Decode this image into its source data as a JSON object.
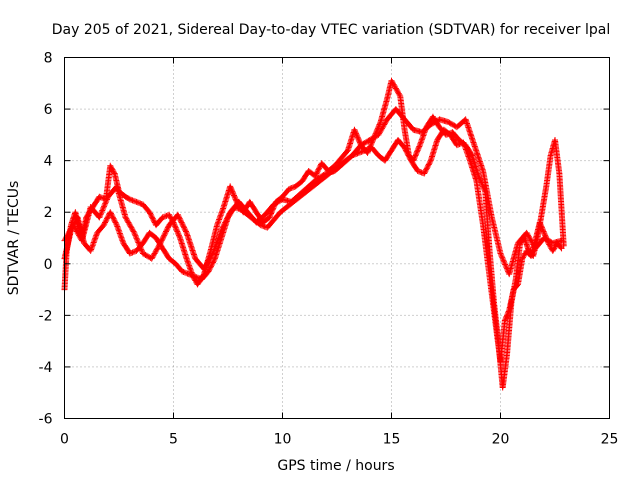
{
  "chart_data": {
    "type": "scatter",
    "title": "Day 205 of 2021, Sidereal Day-to-day VTEC variation (SDTVAR) for receiver lpal",
    "xlabel": "GPS time / hours",
    "ylabel": "SDTVAR / TECUs",
    "xlim": [
      0,
      25
    ],
    "ylim": [
      -6,
      8
    ],
    "xticks": [
      "0",
      "5",
      "10",
      "15",
      "20",
      "25"
    ],
    "yticks": [
      "-6",
      "-4",
      "-2",
      "0",
      "2",
      "4",
      "6",
      "8"
    ],
    "grid": true,
    "marker": "plus",
    "color": "#ff0000",
    "series": [
      {
        "x": [
          0.0,
          0.1,
          0.3,
          0.5,
          0.8,
          1.0,
          1.3,
          1.6,
          1.9,
          2.1,
          2.3,
          2.5,
          2.8,
          3.0,
          3.3,
          3.6,
          3.9,
          4.2,
          4.5,
          4.8,
          5.0,
          5.3,
          5.6,
          5.9,
          6.1,
          6.4,
          6.7,
          7.0,
          7.3,
          7.6,
          7.9,
          8.2,
          8.5,
          8.8,
          9.1,
          9.4,
          9.7,
          10.0,
          10.3,
          10.6,
          10.9,
          11.2,
          11.5,
          11.8,
          12.1,
          12.4,
          12.7,
          13.0,
          13.3,
          13.6,
          13.9,
          14.2,
          14.5,
          14.8,
          15.0,
          15.2,
          15.4,
          15.6,
          15.8,
          16.0,
          16.3,
          16.6,
          16.9,
          17.2,
          17.5,
          17.8,
          18.1,
          18.4,
          18.7,
          19.0,
          19.3,
          19.5,
          19.7,
          19.9,
          20.1,
          20.3,
          20.5,
          20.7,
          20.9,
          21.1,
          21.3,
          21.5,
          21.7,
          21.9,
          22.1,
          22.3,
          22.5,
          22.7,
          22.9
        ],
        "y": [
          -1.0,
          0.5,
          1.5,
          2.0,
          1.0,
          1.8,
          2.2,
          2.6,
          2.5,
          3.8,
          3.5,
          2.8,
          2.6,
          2.5,
          2.4,
          2.3,
          2.0,
          1.5,
          1.8,
          1.9,
          1.6,
          1.0,
          0.2,
          -0.5,
          -0.8,
          -0.4,
          0.5,
          1.5,
          2.2,
          3.0,
          2.4,
          2.0,
          2.4,
          2.0,
          1.6,
          1.8,
          2.4,
          2.6,
          2.9,
          3.0,
          3.2,
          3.6,
          3.4,
          3.9,
          3.6,
          3.8,
          4.1,
          4.4,
          5.2,
          4.6,
          4.3,
          4.9,
          5.5,
          6.4,
          7.1,
          6.8,
          6.5,
          5.2,
          4.2,
          4.0,
          4.6,
          5.3,
          5.7,
          5.3,
          5.0,
          5.1,
          4.8,
          4.6,
          4.2,
          3.4,
          2.8,
          0.5,
          -1.5,
          -3.0,
          -4.8,
          -3.5,
          -1.5,
          -0.6,
          0.8,
          1.0,
          0.5,
          0.3,
          1.0,
          2.0,
          3.0,
          4.2,
          4.8,
          3.5,
          0.7
        ]
      },
      {
        "x": [
          0.0,
          0.3,
          0.6,
          0.9,
          1.2,
          1.5,
          1.8,
          2.1,
          2.4,
          2.7,
          3.0,
          3.3,
          3.6,
          3.9,
          4.2,
          4.5,
          4.8,
          5.1,
          5.4,
          5.7,
          6.0,
          6.3,
          6.6,
          6.9,
          7.2,
          7.5,
          7.8,
          8.1,
          8.4,
          8.7,
          9.0,
          9.3,
          9.6,
          9.9,
          10.2,
          10.5,
          10.8,
          11.1,
          11.4,
          11.7,
          12.0,
          12.3,
          12.6,
          12.9,
          13.2,
          13.5,
          13.8,
          14.1,
          14.4,
          14.7,
          15.0,
          15.3,
          15.6,
          15.9,
          16.2,
          16.5,
          16.8,
          17.1,
          17.4,
          17.7,
          18.0,
          18.3,
          18.6,
          18.9,
          19.2,
          19.5,
          19.8,
          20.0,
          20.2,
          20.4,
          20.6,
          20.8,
          21.0,
          21.2,
          21.4,
          21.6,
          21.8,
          22.0,
          22.2,
          22.4,
          22.6,
          22.8
        ],
        "y": [
          0.2,
          1.3,
          1.8,
          0.8,
          0.5,
          1.2,
          1.5,
          2.0,
          1.5,
          0.8,
          0.4,
          0.5,
          0.8,
          1.2,
          1.0,
          0.6,
          0.2,
          0.0,
          -0.3,
          -0.4,
          -0.5,
          -0.6,
          -0.3,
          0.2,
          1.0,
          1.8,
          2.2,
          2.1,
          1.9,
          1.7,
          1.5,
          1.4,
          1.7,
          2.0,
          2.2,
          2.4,
          2.6,
          2.8,
          3.0,
          3.2,
          3.4,
          3.6,
          3.8,
          4.0,
          4.2,
          4.3,
          4.4,
          4.5,
          4.2,
          4.0,
          4.4,
          4.8,
          4.5,
          4.0,
          3.6,
          3.5,
          4.0,
          4.8,
          5.2,
          5.0,
          4.6,
          4.7,
          4.0,
          3.2,
          1.5,
          -0.5,
          -2.5,
          -3.8,
          -2.2,
          -1.8,
          -1.0,
          -0.8,
          0.2,
          0.5,
          0.3,
          0.9,
          1.6,
          1.2,
          0.8,
          0.5,
          0.8,
          0.6
        ]
      },
      {
        "x": [
          0.0,
          0.4,
          0.8,
          1.2,
          1.6,
          2.0,
          2.4,
          2.8,
          3.2,
          3.6,
          4.0,
          4.4,
          4.8,
          5.2,
          5.6,
          6.0,
          6.4,
          6.8,
          7.2,
          7.6,
          8.0,
          8.4,
          8.8,
          9.2,
          9.6,
          10.0,
          10.4,
          10.8,
          11.2,
          11.6,
          12.0,
          12.4,
          12.8,
          13.2,
          13.6,
          14.0,
          14.4,
          14.8,
          15.2,
          15.6,
          16.0,
          16.4,
          16.8,
          17.2,
          17.6,
          18.0,
          18.4,
          18.8,
          19.2,
          19.6,
          20.0,
          20.4,
          20.8,
          21.2,
          21.6,
          22.0,
          22.4,
          22.8
        ],
        "y": [
          0.9,
          1.5,
          0.9,
          2.2,
          1.8,
          2.6,
          3.0,
          1.8,
          1.2,
          0.4,
          0.2,
          0.8,
          1.5,
          1.9,
          1.2,
          0.2,
          -0.2,
          0.4,
          1.3,
          2.0,
          2.4,
          2.0,
          1.6,
          1.9,
          2.3,
          2.5,
          2.4,
          2.7,
          3.0,
          3.3,
          3.5,
          3.6,
          3.9,
          4.2,
          4.6,
          4.8,
          5.0,
          5.6,
          6.0,
          5.6,
          5.2,
          5.1,
          5.4,
          5.6,
          5.5,
          5.3,
          5.6,
          4.6,
          3.6,
          1.8,
          0.4,
          -0.4,
          0.8,
          1.2,
          0.6,
          1.0,
          0.8,
          0.9
        ]
      }
    ]
  }
}
